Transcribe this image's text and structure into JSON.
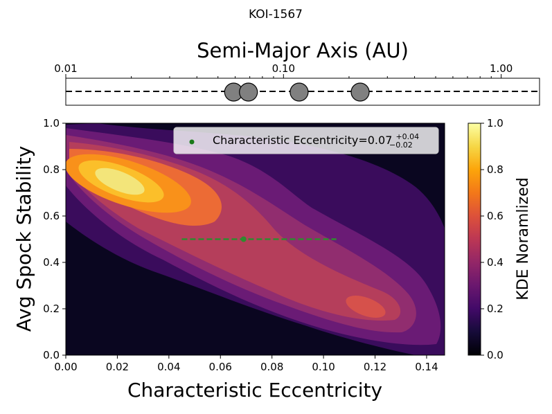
{
  "chart_data": [
    {
      "type": "strip",
      "suptitle": "KOI-1567",
      "title": "Semi-Major Axis (AU)",
      "xscale": "log",
      "xlim": [
        0.01,
        1.5
      ],
      "tick_labels": [
        "0.01",
        "0.10",
        "1.00"
      ],
      "tick_values": [
        0.01,
        0.1,
        1.0
      ],
      "planets": [
        {
          "a": 0.059
        },
        {
          "a": 0.069
        },
        {
          "a": 0.118
        },
        {
          "a": 0.225
        }
      ],
      "colors": {
        "planet": "#808080",
        "line": "#000000"
      }
    },
    {
      "type": "contour",
      "title": "",
      "xlabel": "Characteristic Eccentricity",
      "ylabel": "Avg Spock Stability",
      "xlim": [
        0.0,
        0.147
      ],
      "ylim": [
        0.0,
        1.0
      ],
      "x_tick_labels": [
        "0.00",
        "0.02",
        "0.04",
        "0.06",
        "0.08",
        "0.10",
        "0.12",
        "0.14"
      ],
      "y_tick_labels": [
        "0.0",
        "0.2",
        "0.4",
        "0.6",
        "0.8",
        "1.0"
      ],
      "colorbar": {
        "label": "KDE Noramlized",
        "range": [
          0.0,
          1.0
        ],
        "tick_labels": [
          "0.0",
          "0.2",
          "0.4",
          "0.6",
          "0.8",
          "1.0"
        ],
        "colormap": "inferno"
      },
      "kde_peaks": [
        {
          "x": 0.022,
          "y": 0.75,
          "level": 1.0
        },
        {
          "x": 0.116,
          "y": 0.2,
          "level": 0.6
        }
      ],
      "errorbar": {
        "x": 0.069,
        "y": 0.5,
        "x_low": 0.045,
        "x_high": 0.105,
        "color": "#2e8b2e"
      },
      "legend": {
        "label": "Characteristic Eccentricity=0.07",
        "sup": "+0.04",
        "sub": "−0.02",
        "location": "top-right"
      },
      "levels": [
        "#0a0620",
        "#3a0c5c",
        "#6a1b75",
        "#912d6f",
        "#b53e5b",
        "#d6514b",
        "#ec6b35",
        "#f9911a",
        "#fbbf2a",
        "#f3e57a"
      ]
    }
  ]
}
